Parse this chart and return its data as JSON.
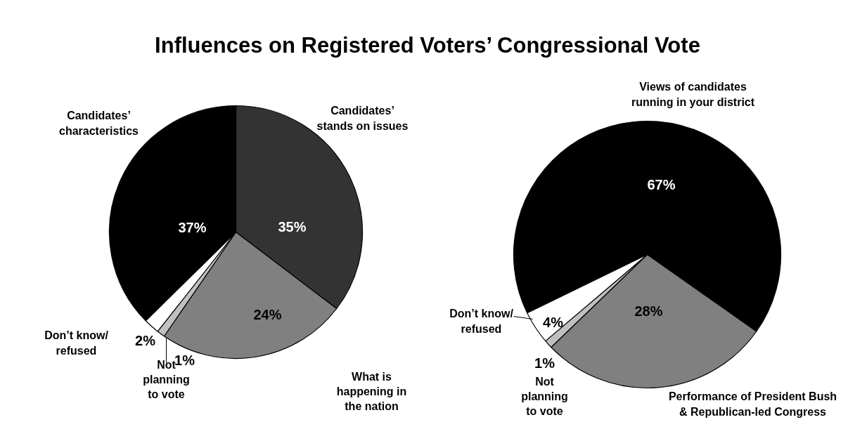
{
  "chart_data": [
    {
      "type": "pie",
      "title": "Influences on Registered Voters’ Congressional Vote",
      "categories": [
        "Candidates’ stands on issues",
        "What is happening in the nation",
        "Not planning to vote",
        "Don’t know/refused",
        "Candidates’ characteristics"
      ],
      "values": [
        35,
        24,
        1,
        2,
        37
      ],
      "value_labels": [
        "35%",
        "24%",
        "1%",
        "2%",
        "37%"
      ],
      "colors": [
        "#333333",
        "#808080",
        "#c0c0c0",
        "#ffffff",
        "#000000"
      ]
    },
    {
      "type": "pie",
      "categories": [
        "Views of candidates running in your district",
        "Performance of President Bush & Republican-led Congress",
        "Not planning to vote",
        "Don’t know/refused"
      ],
      "values": [
        67,
        28,
        1,
        4
      ],
      "value_labels": [
        "67%",
        "28%",
        "1%",
        "4%"
      ],
      "colors": [
        "#000000",
        "#808080",
        "#c0c0c0",
        "#ffffff"
      ]
    }
  ]
}
